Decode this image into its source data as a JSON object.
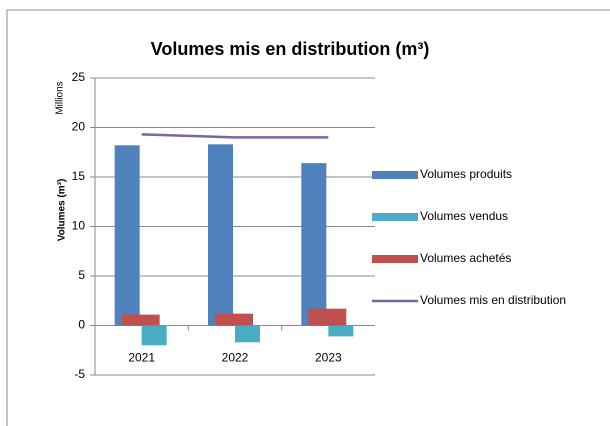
{
  "chart_data": {
    "type": "bar",
    "title": "Volumes mis en distribution (m³)",
    "y_label": "Volumes (m³)",
    "y_unit": "Millions",
    "categories": [
      "2021",
      "2022",
      "2023"
    ],
    "series": [
      {
        "name": "Volumes produits",
        "color": "#4f81bd",
        "type": "bar",
        "values": [
          18.2,
          18.3,
          16.4
        ]
      },
      {
        "name": "Volumes vendus",
        "color": "#4bacc6",
        "type": "bar",
        "values": [
          -2.0,
          -1.7,
          -1.1
        ]
      },
      {
        "name": "Volumes achetés",
        "color": "#c0504d",
        "type": "bar",
        "values": [
          1.1,
          1.2,
          1.7
        ]
      },
      {
        "name": "Volumes mis en distribution",
        "color": "#8064a2",
        "type": "line",
        "values": [
          19.3,
          19.0,
          19.0
        ]
      }
    ],
    "ylim": [
      -5,
      25
    ],
    "yticks": [
      -5,
      0,
      5,
      10,
      15,
      20,
      25
    ],
    "grid": true,
    "legend": "right"
  }
}
